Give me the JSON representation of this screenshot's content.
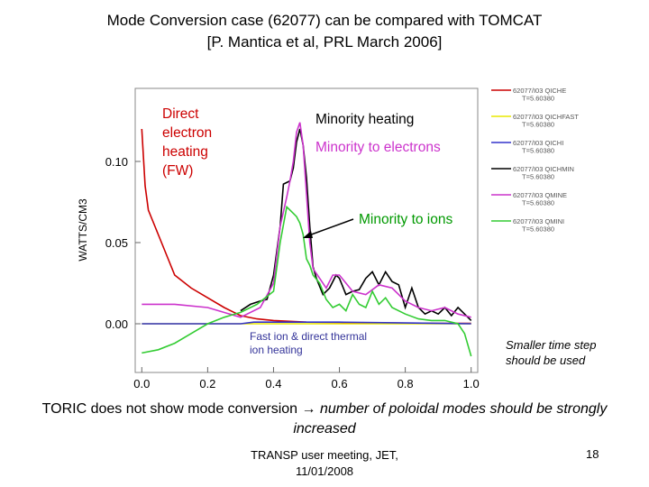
{
  "title_line1": "Mode Conversion case (62077) can be compared with TOMCAT",
  "title_line2": "[P. Mantica et al, PRL March 2006]",
  "annotations": {
    "direct_electron": [
      "Direct",
      "electron",
      "heating",
      "(FW)"
    ],
    "minority_heating": "Minority heating",
    "minority_electrons": "Minority to electrons",
    "minority_ions": "Minority to ions",
    "fast_ion": [
      "Fast ion & direct thermal",
      "ion heating"
    ],
    "smaller_step": [
      "Smaller time step",
      "should be used"
    ]
  },
  "bottom_text_normal": "TORIC does not show mode conversion → ",
  "bottom_text_italic_1": "number of poloidal modes should be strongly",
  "bottom_text_italic_2": "increased",
  "footer": [
    "TRANSP user meeting, JET,",
    "11/01/2008"
  ],
  "page_number": "18",
  "chart_data": {
    "type": "line",
    "title": "",
    "ylabel": "WATTS/CM3",
    "xlabel": "",
    "xlim": [
      -0.02,
      1.02
    ],
    "ylim": [
      -0.03,
      0.145
    ],
    "x_ticks": [
      "0.0",
      "0.2",
      "0.4",
      "0.6",
      "0.8",
      "1.0"
    ],
    "y_ticks": [
      "0.00",
      "0.05",
      "0.10"
    ],
    "legend": [
      {
        "name": "62077/I03 QICHE",
        "sub": "T=5.60380",
        "color": "#cc0000"
      },
      {
        "name": "62077/I03 QICHFAST",
        "sub": "T=5.60380",
        "color": "#e8e800"
      },
      {
        "name": "62077/I03 QICHI",
        "sub": "T=5.60380",
        "color": "#3333cc"
      },
      {
        "name": "62077/I03 QICHMIN",
        "sub": "T=5.60380",
        "color": "#000000"
      },
      {
        "name": "62077/I03 QMINE",
        "sub": "T=5.60380",
        "color": "#cc33cc"
      },
      {
        "name": "62077/I03 QMINI",
        "sub": "T=5.60380",
        "color": "#33cc33"
      }
    ],
    "series": [
      {
        "name": "62077/I03 QICHE",
        "color": "#cc0000",
        "x": [
          0.0,
          0.01,
          0.02,
          0.04,
          0.06,
          0.08,
          0.1,
          0.15,
          0.2,
          0.25,
          0.3,
          0.35,
          0.4,
          0.5,
          0.6,
          0.7,
          0.8,
          0.9,
          1.0
        ],
        "y": [
          0.12,
          0.085,
          0.07,
          0.06,
          0.05,
          0.04,
          0.03,
          0.022,
          0.016,
          0.01,
          0.005,
          0.003,
          0.002,
          0.001,
          0.0008,
          0.0005,
          0.0004,
          0.0003,
          0.0002
        ]
      },
      {
        "name": "62077/I03 QICHFAST",
        "color": "#e8e800",
        "x": [
          0.0,
          0.2,
          0.4,
          0.6,
          0.8,
          1.0
        ],
        "y": [
          0.0,
          0.0,
          0.0,
          0.0,
          0.0,
          0.0
        ]
      },
      {
        "name": "62077/I03 QICHI",
        "color": "#3333cc",
        "x": [
          0.0,
          0.3,
          0.34,
          0.4,
          0.6,
          0.8,
          1.0
        ],
        "y": [
          0.0,
          0.0,
          0.001,
          0.001,
          0.001,
          0.0005,
          0.0
        ]
      },
      {
        "name": "62077/I03 QICHMIN",
        "color": "#000000",
        "x": [
          0.3,
          0.33,
          0.36,
          0.38,
          0.4,
          0.42,
          0.43,
          0.44,
          0.45,
          0.46,
          0.47,
          0.48,
          0.49,
          0.5,
          0.51,
          0.52,
          0.53,
          0.55,
          0.57,
          0.59,
          0.6,
          0.62,
          0.64,
          0.66,
          0.68,
          0.7,
          0.72,
          0.74,
          0.76,
          0.78,
          0.8,
          0.82,
          0.84,
          0.86,
          0.88,
          0.9,
          0.92,
          0.94,
          0.96,
          0.98,
          1.0
        ],
        "y": [
          0.008,
          0.012,
          0.014,
          0.015,
          0.03,
          0.06,
          0.086,
          0.087,
          0.088,
          0.096,
          0.112,
          0.12,
          0.11,
          0.09,
          0.06,
          0.035,
          0.028,
          0.018,
          0.022,
          0.03,
          0.028,
          0.018,
          0.02,
          0.021,
          0.028,
          0.032,
          0.024,
          0.032,
          0.026,
          0.024,
          0.01,
          0.022,
          0.01,
          0.006,
          0.008,
          0.006,
          0.01,
          0.005,
          0.01,
          0.006,
          0.002
        ]
      },
      {
        "name": "62077/I03 QMINE",
        "color": "#cc33cc",
        "x": [
          0.0,
          0.1,
          0.2,
          0.3,
          0.36,
          0.4,
          0.42,
          0.44,
          0.45,
          0.46,
          0.47,
          0.48,
          0.49,
          0.5,
          0.51,
          0.52,
          0.54,
          0.56,
          0.58,
          0.6,
          0.64,
          0.68,
          0.72,
          0.76,
          0.8,
          0.84,
          0.88,
          0.92,
          0.96,
          1.0
        ],
        "y": [
          0.012,
          0.012,
          0.01,
          0.004,
          0.01,
          0.025,
          0.06,
          0.078,
          0.088,
          0.1,
          0.118,
          0.124,
          0.11,
          0.08,
          0.05,
          0.034,
          0.028,
          0.022,
          0.03,
          0.03,
          0.02,
          0.018,
          0.024,
          0.022,
          0.014,
          0.01,
          0.008,
          0.01,
          0.006,
          0.004
        ]
      },
      {
        "name": "62077/I03 QMINI",
        "color": "#33cc33",
        "x": [
          0.0,
          0.05,
          0.1,
          0.15,
          0.2,
          0.25,
          0.3,
          0.35,
          0.4,
          0.42,
          0.44,
          0.46,
          0.47,
          0.48,
          0.49,
          0.5,
          0.51,
          0.52,
          0.54,
          0.56,
          0.58,
          0.6,
          0.62,
          0.64,
          0.66,
          0.68,
          0.7,
          0.72,
          0.74,
          0.76,
          0.8,
          0.84,
          0.88,
          0.92,
          0.96,
          0.98,
          1.0
        ],
        "y": [
          -0.018,
          -0.016,
          -0.012,
          -0.006,
          0.0,
          0.004,
          0.007,
          0.012,
          0.02,
          0.05,
          0.072,
          0.068,
          0.066,
          0.062,
          0.055,
          0.04,
          0.036,
          0.03,
          0.025,
          0.015,
          0.01,
          0.012,
          0.008,
          0.018,
          0.012,
          0.01,
          0.02,
          0.012,
          0.016,
          0.01,
          0.006,
          0.003,
          0.002,
          0.002,
          0.0,
          -0.006,
          -0.02
        ]
      }
    ]
  }
}
